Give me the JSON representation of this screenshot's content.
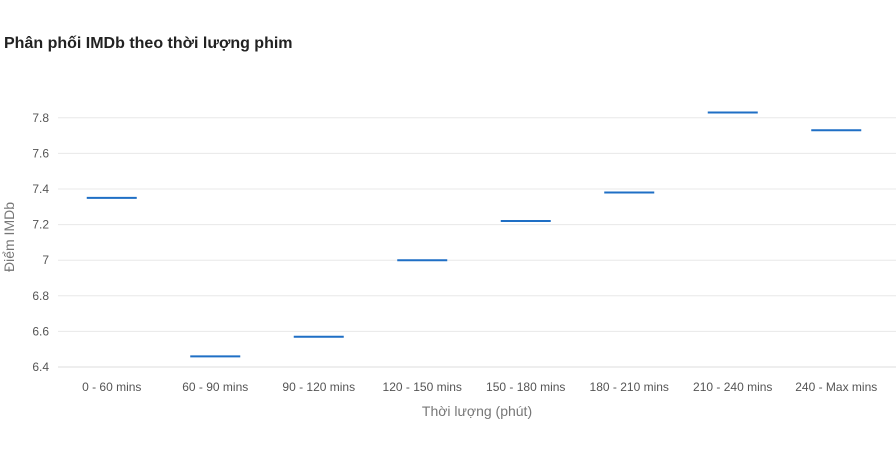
{
  "chart_data": {
    "type": "bar",
    "title": "Phân phối IMDb theo thời lượng phim",
    "xlabel": "Thời lượng (phút)",
    "ylabel": "Điểm IMDb",
    "categories": [
      "0 - 60 mins",
      "60 - 90 mins",
      "90 - 120 mins",
      "120 - 150 mins",
      "150 - 180 mins",
      "180 - 210 mins",
      "210 - 240 mins",
      "240 - Max mins"
    ],
    "values": [
      7.35,
      6.46,
      6.57,
      7.0,
      7.22,
      7.38,
      7.83,
      7.73
    ],
    "ylim": [
      6.4,
      7.9
    ],
    "yticks": [
      6.4,
      6.6,
      6.8,
      7,
      7.2,
      7.4,
      7.6,
      7.8
    ],
    "ytick_labels": [
      "6.4",
      "6.6",
      "6.8",
      "7",
      "7.2",
      "7.4",
      "7.6",
      "7.8"
    ],
    "grid": true,
    "legend": "none",
    "color": "#1f6fc5"
  }
}
